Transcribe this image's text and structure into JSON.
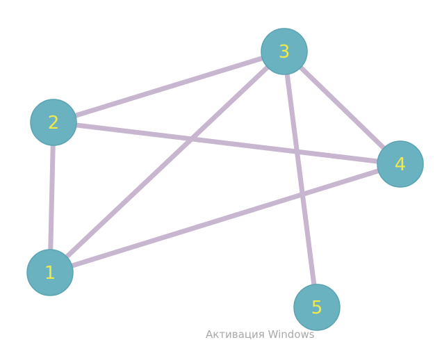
{
  "graph": {
    "nodes": [
      {
        "id": "1",
        "label": "1"
      },
      {
        "id": "2",
        "label": "2"
      },
      {
        "id": "3",
        "label": "3"
      },
      {
        "id": "4",
        "label": "4"
      },
      {
        "id": "5",
        "label": "5"
      }
    ],
    "edges": [
      {
        "from": "1",
        "to": "2"
      },
      {
        "from": "1",
        "to": "3"
      },
      {
        "from": "1",
        "to": "4"
      },
      {
        "from": "2",
        "to": "3"
      },
      {
        "from": "2",
        "to": "4"
      },
      {
        "from": "3",
        "to": "4"
      },
      {
        "from": "3",
        "to": "5"
      }
    ],
    "colors": {
      "node_fill": "#6bb2c0",
      "node_label": "#f2e94a",
      "edge": "#c8b5cf"
    }
  },
  "watermark": {
    "text": "Активация Windows"
  }
}
